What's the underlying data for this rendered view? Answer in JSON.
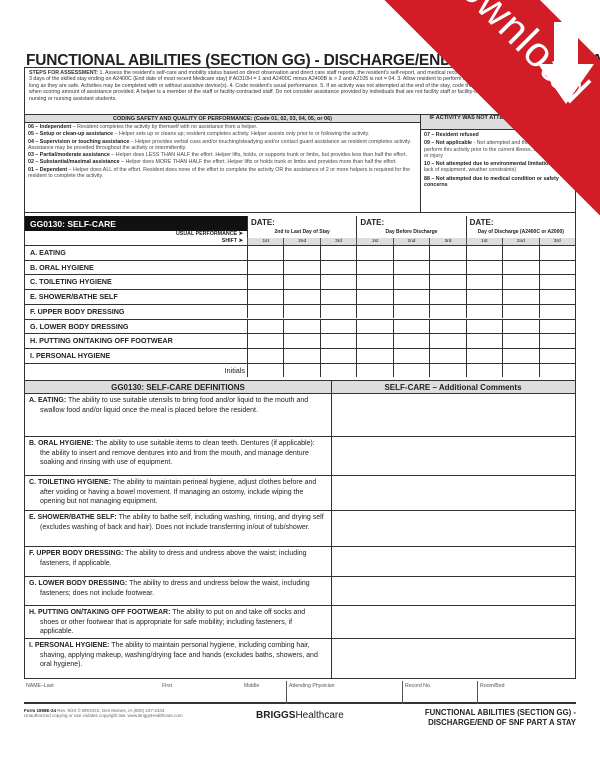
{
  "title": "FUNCTIONAL ABILITIES (SECTION GG) - DISCHARGE/END OF SNF PART A STAY",
  "steps": {
    "label": "STEPS FOR ASSESSMENT:",
    "text": "1. Assess the resident's self-care and mobility status based on direct observation and direct care staff reports, the resident's self-report, and medical record during the 3-day assessment period – the last 3 days of the skilled stay ending on A2400C (End date of most recent Medicare stay) if A0310H = 1 and A2400C minus A2400B is > 2 and A2105 is not = 04. 3. Allow resident to perform activities as independently as possible, as long as they are safe. Activities may be completed with or without assistive device(s). 4. Code resident's usual performance. 5. If an activity was not attempted at the end of the stay, code the reason. 6. Consider only facility staff when scoring amount of assistance provided. A helper is a member of the staff or facility-contracted staff. Do not consider assistance provided by individuals that are not facility staff or facility-contracted which includes hospice staff, nursing or nursing assistant students."
  },
  "coding": {
    "header": "CODING SAFETY AND QUALITY OF PERFORMANCE:   (Code 01, 02, 03, 04, 05, or 06)",
    "items": [
      {
        "code": "06 – Independent",
        "desc": " – Resident completes the activity by themself with no assistance from a helper."
      },
      {
        "code": "05 – Setup or clean-up assistance",
        "desc": " – Helper sets up or cleans up; resident completes activity. Helper assists only prior to or following the activity."
      },
      {
        "code": "04 – Supervision or touching assistance",
        "desc": " – Helper provides verbal cues and/or touching/steadying and/or contact guard assistance as resident completes activity. Assistance may be provided throughout the activity or intermittently."
      },
      {
        "code": "03 – Partial/moderate assistance",
        "desc": " – Helper does LESS THAN HALF the effort. Helper lifts, holds, or supports trunk or limbs, but provides less than half the effort."
      },
      {
        "code": "02 – Substantial/maximal assistance",
        "desc": " – Helper does MORE THAN HALF the effort. Helper lifts or holds trunk or limbs and provides more than half the effort."
      },
      {
        "code": "01 – Dependent",
        "desc": " – Helper does ALL of the effort. Resident does none of the effort to complete the activity OR the assistance of 2 or more helpers is required for the resident to complete the activity."
      }
    ]
  },
  "not_attempted": {
    "header": "IF ACTIVITY WAS NOT ATTEMPTED, CODE REASON",
    "items": [
      {
        "code": "07 – Resident refused",
        "desc": ""
      },
      {
        "code": "09 – Not applicable",
        "desc": " - Not attempted and the resident did not perform this activity prior to the current illness, exacerbation, or injury"
      },
      {
        "code": "10 – Not attempted due to environmental limitations",
        "desc": " (e.g., lack of equipment, weather constraints)"
      },
      {
        "code": "88 – Not attempted due to medical condition or safety concerns",
        "desc": ""
      }
    ]
  },
  "grid": {
    "title": "GG0130: SELF-CARE",
    "usual": "USUAL PERFORMANCE ➤",
    "shift": "SHIFT ➤",
    "dates": [
      {
        "label": "DATE:",
        "sub": "2nd to Last Day of Stay"
      },
      {
        "label": "DATE:",
        "sub": "Day Before Discharge"
      },
      {
        "label": "DATE:",
        "sub": "Day of Discharge (A2400C or A2000)"
      }
    ],
    "shifts": [
      "1st",
      "2nd",
      "3rd"
    ],
    "rows": [
      "A.  EATING",
      "B.  ORAL HYGIENE",
      "C.  TOILETING HYGIENE",
      "E.  SHOWER/BATHE SELF",
      "F.  UPPER BODY DRESSING",
      "G.  LOWER BODY DRESSING",
      "H.  PUTTING ON/TAKING OFF FOOTWEAR",
      "I.   PERSONAL HYGIENE"
    ],
    "initials": "Initials"
  },
  "definitions": {
    "header": "GG0130: SELF-CARE DEFINITIONS",
    "comments_header": "SELF-CARE – Additional Comments",
    "items": [
      {
        "term": "A.  EATING:",
        "text": " The ability to use suitable utensils to bring food and/or liquid to the mouth and swallow food and/or liquid once the meal is placed before the resident."
      },
      {
        "term": "B.  ORAL HYGIENE:",
        "text": " The ability to use suitable items to clean teeth. Dentures (if applicable): the ability to insert and remove dentures into and from the mouth, and manage denture soaking and rinsing with use of equipment."
      },
      {
        "term": "C.  TOILETING HYGIENE:",
        "text": " The ability to maintain perineal hygiene, adjust clothes before and after voiding or having a bowel movement. If managing an ostomy, include wiping the opening but not managing equipment."
      },
      {
        "term": "E.  SHOWER/BATHE SELF:",
        "text": " The ability to bathe self, including washing, rinsing, and drying self (excludes washing of back and hair). Does not include transferring in/out of tub/shower."
      },
      {
        "term": "F.  UPPER BODY DRESSING:",
        "text": " The ability to dress and undress above the waist; including fasteners, if applicable."
      },
      {
        "term": "G.  LOWER BODY DRESSING:",
        "text": " The ability to dress and undress below the waist, including fasteners; does not include footwear."
      },
      {
        "term": "H.  PUTTING ON/TAKING OFF FOOTWEAR:",
        "text": " The ability to put on and take off socks and shoes or other footwear that is appropriate for safe mobility; including fasteners, if applicable."
      },
      {
        "term": "I.   PERSONAL HYGIENE:",
        "text": " The ability to maintain personal hygiene, including combing hair, shaving, applying makeup, washing/drying face and hands (excludes baths, showers, and oral hygiene)."
      }
    ]
  },
  "name_row": {
    "last": "NAME–Last",
    "first": "First",
    "middle": "Middle",
    "physician": "Attending Physician",
    "record": "Record No.",
    "room": "Room/Bed"
  },
  "footer": {
    "form": "Form 1898E-24",
    "rev": "Rev. 9/24  © BRIGGS, Des Moines, IA (800) 247-2343",
    "copy": "Unauthorized copying or use violates copyright law.  www.BriggsHealthcare.com",
    "brand_bold": "BRIGGS",
    "brand_light": "Healthcare",
    "title1": "FUNCTIONAL ABILITIES (SECTION GG) -",
    "title2": "DISCHARGE/END OF SNF PART A STAY"
  },
  "ribbon": {
    "label": "download",
    "color": "#d21d26",
    "icon": "arrow-down-icon"
  }
}
